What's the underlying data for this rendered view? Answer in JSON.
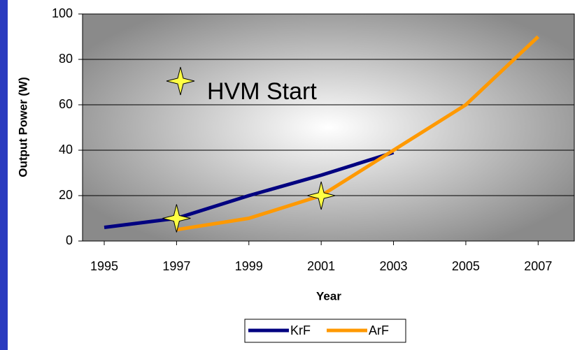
{
  "chart_data": {
    "type": "line",
    "x_label": "Year",
    "y_label": "Output Power (W)",
    "annotation": "HVM Start",
    "hvm_points": {
      "x": [
        1997,
        2001
      ],
      "values": [
        10,
        20
      ]
    },
    "series": [
      {
        "name": "KrF",
        "color": "#000080",
        "x": [
          1995,
          1997,
          1999,
          2001,
          2003
        ],
        "values": [
          6,
          10,
          20,
          29,
          39
        ]
      },
      {
        "name": "ArF",
        "color": "#ff9900",
        "x": [
          1997,
          1999,
          2001,
          2003,
          2005,
          2007
        ],
        "values": [
          5,
          10,
          20,
          40,
          60,
          90
        ]
      }
    ],
    "xlim": [
      1994.4,
      2008
    ],
    "xticks": [
      1995,
      1997,
      1999,
      2001,
      2003,
      2005,
      2007
    ],
    "ylim": [
      0,
      100
    ],
    "yticks": [
      0,
      20,
      40,
      60,
      80,
      100
    ],
    "grid": true
  }
}
